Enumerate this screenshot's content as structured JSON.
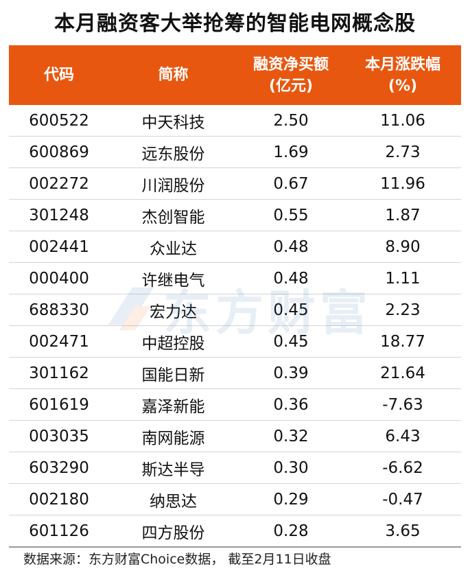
{
  "title": "本月融资客大举抢筹的智能电网概念股",
  "columns": {
    "code": "代码",
    "name": "简称",
    "financing_line1": "融资净买额",
    "financing_line2": "(亿元)",
    "change_line1": "本月涨跌幅",
    "change_line2": "(%)"
  },
  "rows": [
    {
      "code": "600522",
      "name": "中天科技",
      "financing": "2.50",
      "change": "11.06"
    },
    {
      "code": "600869",
      "name": "远东股份",
      "financing": "1.69",
      "change": "2.73"
    },
    {
      "code": "002272",
      "name": "川润股份",
      "financing": "0.67",
      "change": "11.96"
    },
    {
      "code": "301248",
      "name": "杰创智能",
      "financing": "0.55",
      "change": "1.87"
    },
    {
      "code": "002441",
      "name": "众业达",
      "financing": "0.48",
      "change": "8.90"
    },
    {
      "code": "000400",
      "name": "许继电气",
      "financing": "0.48",
      "change": "1.11"
    },
    {
      "code": "688330",
      "name": "宏力达",
      "financing": "0.45",
      "change": "2.23"
    },
    {
      "code": "002471",
      "name": "中超控股",
      "financing": "0.45",
      "change": "18.77"
    },
    {
      "code": "301162",
      "name": "国能日新",
      "financing": "0.39",
      "change": "21.64"
    },
    {
      "code": "601619",
      "name": "嘉泽新能",
      "financing": "0.36",
      "change": "-7.63"
    },
    {
      "code": "003035",
      "name": "南网能源",
      "financing": "0.32",
      "change": "6.43"
    },
    {
      "code": "603290",
      "name": "斯达半导",
      "financing": "0.30",
      "change": "-6.62"
    },
    {
      "code": "002180",
      "name": "纳思达",
      "financing": "0.29",
      "change": "-0.47"
    },
    {
      "code": "601126",
      "name": "四方股份",
      "financing": "0.28",
      "change": "3.65"
    }
  ],
  "source": "数据来源：东方财富Choice数据， 截至2月11日收盘",
  "watermark": "东方财富",
  "colors": {
    "header_bg": "#e8570f",
    "header_text": "#ffffff",
    "watermark": "#1f5fa8"
  }
}
